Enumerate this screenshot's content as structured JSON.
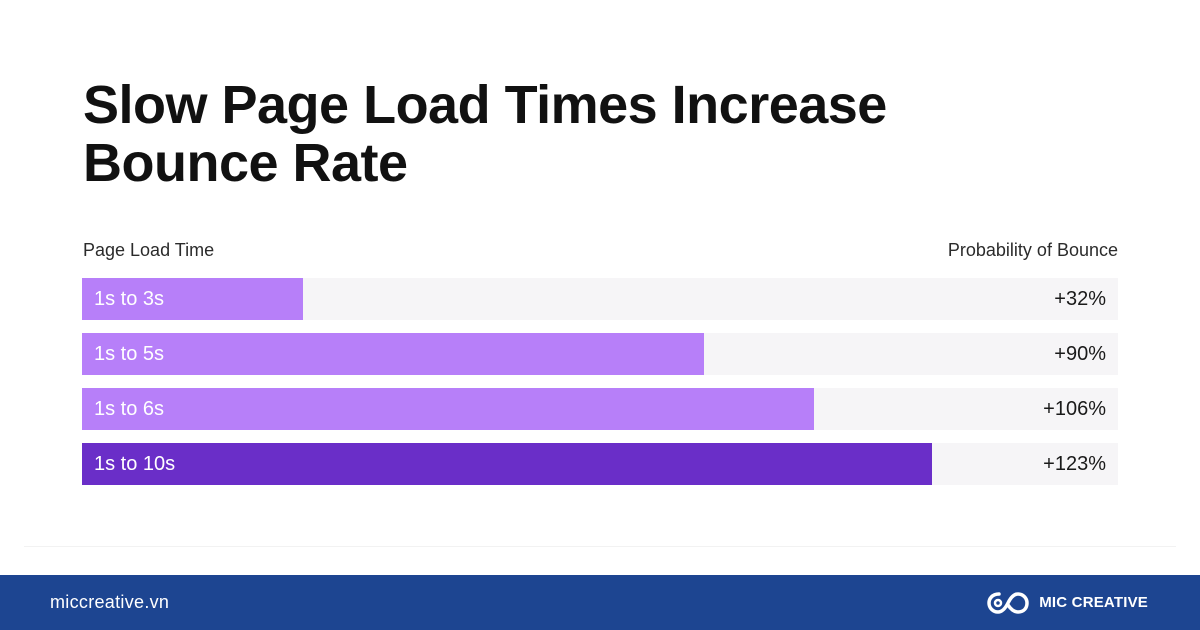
{
  "title_line1": "Slow Page Load Times Increase",
  "title_line2": "Bounce Rate",
  "header": {
    "left": "Page Load Time",
    "right": "Probability of Bounce"
  },
  "colors": {
    "bar_light": "#b77ff9",
    "bar_dark": "#6a2ec8",
    "track": "#f6f5f7",
    "footer_bg": "#1d4591"
  },
  "chart_data": {
    "type": "bar",
    "orientation": "horizontal",
    "categories": [
      "1s to 3s",
      "1s to 5s",
      "1s to 6s",
      "1s to 10s"
    ],
    "values": [
      32,
      90,
      106,
      123
    ],
    "value_labels": [
      "+32%",
      "+90%",
      "+106%",
      "+123%"
    ],
    "xlim": [
      0,
      150
    ],
    "highlight_index": 3
  },
  "footer": {
    "website": "miccreative.vn",
    "brand_name": "MIC CREATIVE",
    "brand_icon": "infinity-logo-icon"
  }
}
